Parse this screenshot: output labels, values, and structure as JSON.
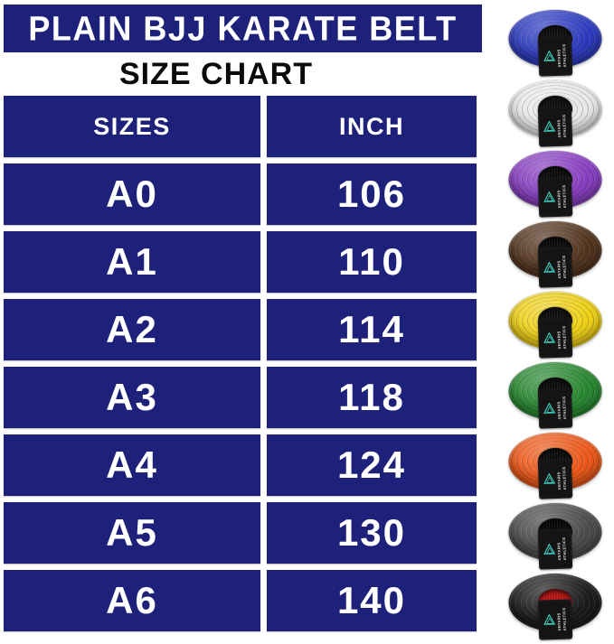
{
  "header": {
    "title": "PLAIN BJJ KARATE BELT",
    "subtitle": "SIZE CHART"
  },
  "size_chart": {
    "columns": [
      "SIZES",
      "INCH"
    ],
    "rows": [
      {
        "size": "A0",
        "inch": "106"
      },
      {
        "size": "A1",
        "inch": "110"
      },
      {
        "size": "A2",
        "inch": "114"
      },
      {
        "size": "A3",
        "inch": "118"
      },
      {
        "size": "A4",
        "inch": "124"
      },
      {
        "size": "A5",
        "inch": "130"
      },
      {
        "size": "A6",
        "inch": "140"
      }
    ]
  },
  "chart_data": {
    "type": "table",
    "title": "PLAIN BJJ KARATE BELT",
    "subtitle": "SIZE CHART",
    "columns": [
      "SIZES",
      "INCH"
    ],
    "rows": [
      [
        "A0",
        106
      ],
      [
        "A1",
        110
      ],
      [
        "A2",
        114
      ],
      [
        "A3",
        118
      ],
      [
        "A4",
        124
      ],
      [
        "A5",
        130
      ],
      [
        "A6",
        140
      ]
    ]
  },
  "belts": [
    {
      "name": "blue-belt",
      "color": "#2e3cc2",
      "hole": "#101010"
    },
    {
      "name": "white-belt",
      "color": "#e9e9e9",
      "hole": "#101010"
    },
    {
      "name": "purple-belt",
      "color": "#8a40c4",
      "hole": "#0d0d0d"
    },
    {
      "name": "brown-belt",
      "color": "#54351f",
      "hole": "#0d0d0d"
    },
    {
      "name": "yellow-belt",
      "color": "#f0d218",
      "hole": "#101010"
    },
    {
      "name": "green-belt",
      "color": "#2a8a33",
      "hole": "#0d0d0d"
    },
    {
      "name": "orange-belt",
      "color": "#f05a1a",
      "hole": "#0d0d0d"
    },
    {
      "name": "gray-belt",
      "color": "#4d4d4f",
      "hole": "#0a0a0a"
    },
    {
      "name": "black-belt",
      "color": "#1b1b1b",
      "hole": "#b11616"
    }
  ],
  "brand": {
    "line1": "ANTARIS",
    "line2": "ATHLETICS",
    "logo_color": "#3ed3c2"
  },
  "theme": {
    "navy": "#1e2179",
    "table_text": "#ffffff",
    "title_text": "#0b0b0b",
    "background": "#ffffff"
  }
}
